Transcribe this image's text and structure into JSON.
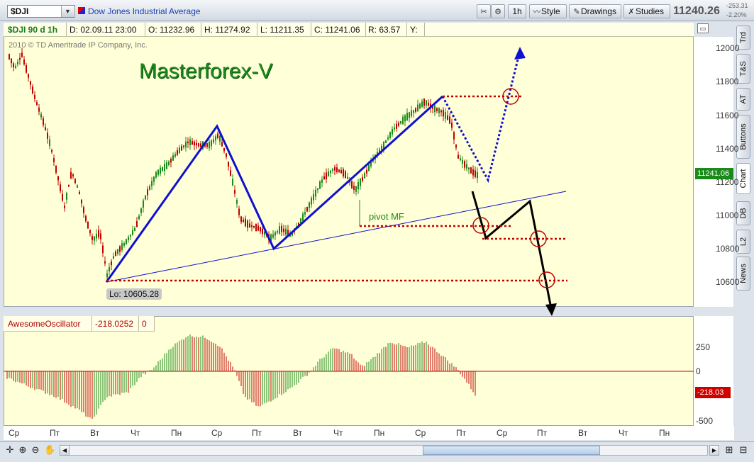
{
  "toolbar": {
    "symbol": "$DJI",
    "description": "Dow Jones Industrial Average",
    "timeframe": "1h",
    "style_label": "Style",
    "drawings_label": "Drawings",
    "studies_label": "Studies",
    "last_price": "11240.26",
    "net_change": "-253.31",
    "pct_change": "-2.20%"
  },
  "side_tabs": [
    "Trd",
    "T&S",
    "AT",
    "Buttons",
    "Chart",
    "DB",
    "L2",
    "News"
  ],
  "info_bar": {
    "symbol": "$DJI 90 d 1h",
    "date": "D: 02.09.11 23:00",
    "open": "O: 11232.96",
    "high": "H: 11274.92",
    "low": "L: 11211.35",
    "close": "C: 11241.06",
    "range": "R: 63.57",
    "y": "Y:"
  },
  "copyright": "2010 © TD Ameritrade IP Company, Inc.",
  "watermark": "Masterforex-V",
  "price_axis": {
    "ticks": [
      "12000",
      "11800",
      "11600",
      "11400",
      "11200",
      "11000",
      "10800",
      "10600"
    ],
    "current_label": "11241.06",
    "current_color": "#1a8a1a"
  },
  "annotations": {
    "low_label": "Lo: 10605.28",
    "pivot_label": "pivot MF"
  },
  "oscillator": {
    "name": "AwesomeOscillator",
    "value": "-218.0252",
    "extra": "0",
    "ticks": [
      "250",
      "0",
      "-500"
    ],
    "current_label": "-218.03",
    "up_color": "#1a8a1a",
    "down_color": "#c00000"
  },
  "time_axis": [
    "Ср",
    "Пт",
    "Вт",
    "Чт",
    "Пн",
    "Ср",
    "Пт",
    "Вт",
    "Чт",
    "Пн",
    "Ср",
    "Пт",
    "Ср",
    "Пт",
    "Вт",
    "Чт",
    "Пн"
  ],
  "colors": {
    "pattern_line": "#1010d0",
    "projection": "#000000",
    "level": "#c00000",
    "bull": "#1a8a1a",
    "bear": "#c00000"
  }
}
